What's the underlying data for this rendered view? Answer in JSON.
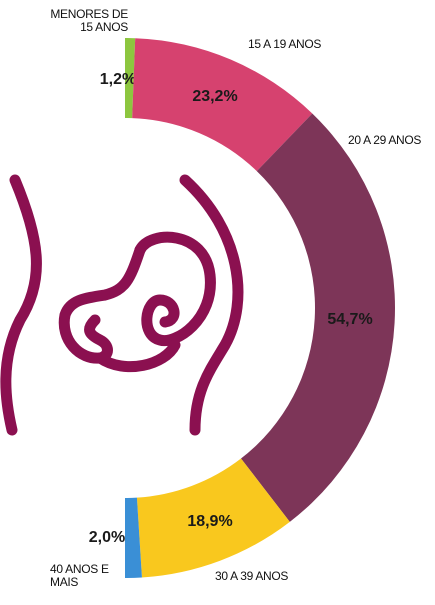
{
  "chart_data": {
    "type": "half-donut",
    "categories": [
      "MENORES DE 15 ANOS",
      "15 A 19 ANOS",
      "20 A 29 ANOS",
      "30 A 39 ANOS",
      "40 ANOS E MAIS"
    ],
    "values": [
      1.2,
      23.2,
      54.7,
      18.9,
      2.0
    ],
    "value_labels": [
      "1,2%",
      "23,2%",
      "54,7%",
      "18,9%",
      "2,0%"
    ],
    "colors": [
      "#8dc63f",
      "#d6426f",
      "#7d3558",
      "#f9c81e",
      "#3a8fd6"
    ]
  }
}
